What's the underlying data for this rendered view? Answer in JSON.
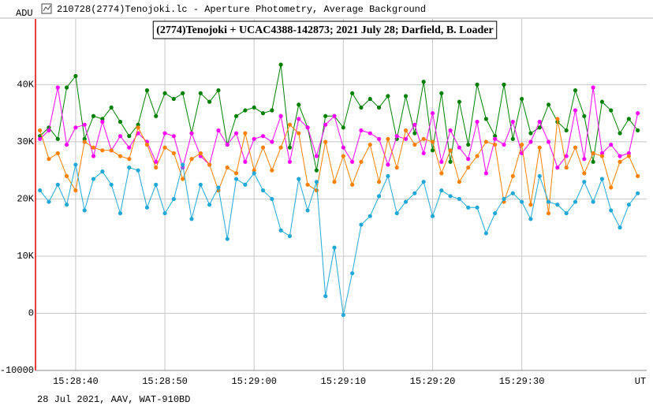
{
  "window_title": "210728(2774)Tenojoki.lc - Aperture Photometry, Average Background",
  "chart_data": {
    "type": "line",
    "title": "(2774)Tenojoki + UCAC4388-142873; 2021 July 28; Darfield, B. Loader",
    "ylabel": "ADU",
    "xlabel": "UT",
    "footer": "28 Jul 2021, AAV, WAT-910BD",
    "grid": true,
    "xlim": [
      "15:28:35.5",
      "15:29:44"
    ],
    "xticks": [
      "15:28:40",
      "15:28:50",
      "15:29:00",
      "15:29:10",
      "15:29:20",
      "15:29:30"
    ],
    "ylim": [
      -10000,
      51500
    ],
    "yticks": [
      -10000,
      0,
      {
        "value": 10000,
        "label": "10K"
      },
      {
        "value": 20000,
        "label": "20K"
      },
      {
        "value": 30000,
        "label": "30K"
      },
      {
        "value": 40000,
        "label": "40K"
      }
    ],
    "x": [
      "15:28:36",
      "15:28:37",
      "15:28:38",
      "15:28:39",
      "15:28:40",
      "15:28:41",
      "15:28:42",
      "15:28:43",
      "15:28:44",
      "15:28:45",
      "15:28:46",
      "15:28:47",
      "15:28:48",
      "15:28:49",
      "15:28:50",
      "15:28:51",
      "15:28:52",
      "15:28:53",
      "15:28:54",
      "15:28:55",
      "15:28:56",
      "15:28:57",
      "15:28:58",
      "15:28:59",
      "15:29:00",
      "15:29:01",
      "15:29:02",
      "15:29:03",
      "15:29:04",
      "15:29:05",
      "15:29:06",
      "15:29:07",
      "15:29:08",
      "15:29:09",
      "15:29:10",
      "15:29:11",
      "15:29:12",
      "15:29:13",
      "15:29:14",
      "15:29:15",
      "15:29:16",
      "15:29:17",
      "15:29:18",
      "15:29:19",
      "15:29:20",
      "15:29:21",
      "15:29:22",
      "15:29:23",
      "15:29:24",
      "15:29:25",
      "15:29:26",
      "15:29:27",
      "15:29:28",
      "15:29:29",
      "15:29:30",
      "15:29:31",
      "15:29:32",
      "15:29:33",
      "15:29:34",
      "15:29:35",
      "15:29:36",
      "15:29:37",
      "15:29:38",
      "15:29:39",
      "15:29:40",
      "15:29:41",
      "15:29:42",
      "15:29:43"
    ],
    "series": [
      {
        "color": "#008000",
        "values": [
          31000,
          32500,
          30500,
          39500,
          41500,
          30500,
          34500,
          34000,
          36000,
          33500,
          31000,
          33000,
          39000,
          34500,
          38500,
          37500,
          38500,
          31500,
          38500,
          37000,
          39000,
          29500,
          34500,
          35500,
          36000,
          35000,
          35500,
          43500,
          29000,
          36500,
          32500,
          25000,
          34500,
          34500,
          32500,
          38500,
          36000,
          37500,
          36000,
          38000,
          30500,
          38000,
          31500,
          40500,
          28500,
          38500,
          26500,
          37000,
          29500,
          40000,
          34000,
          31000,
          40000,
          30500,
          37500,
          31500,
          32500,
          36500,
          33500,
          32000,
          39000,
          34500,
          26500,
          37000,
          35500,
          31500,
          34000,
          32000
        ]
      },
      {
        "color": "#ff00ff",
        "values": [
          30500,
          32000,
          39500,
          29500,
          32500,
          33000,
          27500,
          33500,
          28500,
          31000,
          29000,
          31500,
          30000,
          26500,
          31500,
          31000,
          25500,
          31500,
          27500,
          26000,
          32000,
          29500,
          31500,
          26500,
          30500,
          31000,
          30000,
          34500,
          26500,
          34000,
          32500,
          27500,
          33000,
          34500,
          29000,
          26500,
          32000,
          31500,
          30500,
          26000,
          31000,
          30500,
          33000,
          28000,
          35000,
          26500,
          32000,
          29000,
          27000,
          33500,
          24500,
          30500,
          29500,
          33500,
          28000,
          30000,
          33500,
          30000,
          25500,
          27500,
          35500,
          27000,
          39500,
          28000,
          29500,
          27500,
          28000,
          35000
        ]
      },
      {
        "color": "#ff8000",
        "values": [
          32000,
          27000,
          28000,
          24000,
          21500,
          30000,
          29000,
          28500,
          28500,
          27500,
          27000,
          32500,
          29500,
          25500,
          29000,
          28000,
          23500,
          27000,
          28000,
          26000,
          21500,
          25500,
          24500,
          31500,
          25000,
          29000,
          25000,
          29000,
          33000,
          31500,
          22500,
          21500,
          30000,
          23000,
          27500,
          22500,
          26500,
          29500,
          23000,
          30500,
          25500,
          32000,
          29500,
          30500,
          30000,
          24500,
          28500,
          23000,
          25500,
          27500,
          30000,
          29500,
          19500,
          24000,
          29500,
          19000,
          29000,
          17500,
          34000,
          25500,
          29000,
          24500,
          28000,
          27500,
          22000,
          26500,
          27500,
          24000
        ]
      },
      {
        "color": "#20a8d8",
        "values": [
          21500,
          19500,
          22500,
          19000,
          26000,
          18000,
          23500,
          24800,
          22500,
          17500,
          25500,
          25000,
          18500,
          22500,
          17500,
          20000,
          26000,
          16500,
          22500,
          19000,
          22000,
          13000,
          23500,
          22500,
          24500,
          21500,
          20000,
          14500,
          13500,
          23500,
          18000,
          23000,
          3000,
          11500,
          -300,
          7000,
          15500,
          17000,
          20500,
          24000,
          17500,
          19500,
          21000,
          23000,
          17000,
          21500,
          20500,
          20000,
          18500,
          18500,
          14000,
          17500,
          20000,
          21000,
          19500,
          16500,
          24000,
          19500,
          19000,
          17500,
          19500,
          23000,
          19500,
          23500,
          18000,
          15000,
          19000,
          21000
        ]
      }
    ]
  }
}
